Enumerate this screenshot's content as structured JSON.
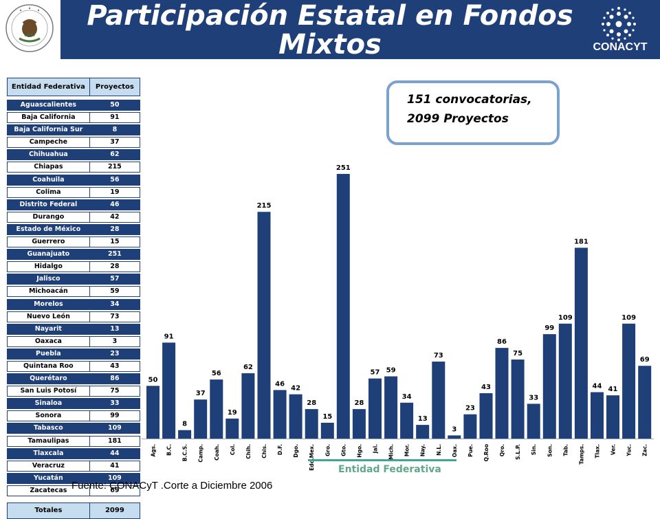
{
  "header": {
    "title_line1": "Participación Estatal en Fondos",
    "title_line2": "Mixtos",
    "logo_text": "CONACYT",
    "seal_text": "ESTADOS UNIDOS MEXICANOS",
    "band_color": "#1e3f77"
  },
  "table": {
    "col1": "Entidad Federativa",
    "col2": "Proyectos",
    "rows": [
      {
        "name": "Aguascalientes",
        "value": "50",
        "style": "dark"
      },
      {
        "name": "Baja California",
        "value": "91",
        "style": "light"
      },
      {
        "name": "Baja California Sur",
        "value": "8",
        "style": "dark"
      },
      {
        "name": "Campeche",
        "value": "37",
        "style": "light"
      },
      {
        "name": "Chihuahua",
        "value": "62",
        "style": "dark"
      },
      {
        "name": "Chiapas",
        "value": "215",
        "style": "light"
      },
      {
        "name": "Coahuila",
        "value": "56",
        "style": "dark"
      },
      {
        "name": "Colima",
        "value": "19",
        "style": "light"
      },
      {
        "name": "Distrito Federal",
        "value": "46",
        "style": "dark"
      },
      {
        "name": "Durango",
        "value": "42",
        "style": "light"
      },
      {
        "name": "Estado de México",
        "value": "28",
        "style": "dark"
      },
      {
        "name": "Guerrero",
        "value": "15",
        "style": "light"
      },
      {
        "name": "Guanajuato",
        "value": "251",
        "style": "dark"
      },
      {
        "name": "Hidalgo",
        "value": "28",
        "style": "light"
      },
      {
        "name": "Jalisco",
        "value": "57",
        "style": "dark"
      },
      {
        "name": "Michoacán",
        "value": "59",
        "style": "light"
      },
      {
        "name": "Morelos",
        "value": "34",
        "style": "dark"
      },
      {
        "name": "Nuevo León",
        "value": "73",
        "style": "light"
      },
      {
        "name": "Nayarit",
        "value": "13",
        "style": "dark"
      },
      {
        "name": "Oaxaca",
        "value": "3",
        "style": "light"
      },
      {
        "name": "Puebla",
        "value": "23",
        "style": "dark"
      },
      {
        "name": "Quintana Roo",
        "value": "43",
        "style": "light"
      },
      {
        "name": "Querétaro",
        "value": "86",
        "style": "dark"
      },
      {
        "name": "San Luis Potosí",
        "value": "75",
        "style": "light"
      },
      {
        "name": "Sinaloa",
        "value": "33",
        "style": "dark"
      },
      {
        "name": "Sonora",
        "value": "99",
        "style": "light"
      },
      {
        "name": "Tabasco",
        "value": "109",
        "style": "dark"
      },
      {
        "name": "Tamaulipas",
        "value": "181",
        "style": "light"
      },
      {
        "name": "Tlaxcala",
        "value": "44",
        "style": "dark"
      },
      {
        "name": "Veracruz",
        "value": "41",
        "style": "light"
      },
      {
        "name": "Yucatán",
        "value": "109",
        "style": "dark"
      },
      {
        "name": "Zacatecas",
        "value": "69",
        "style": "light"
      }
    ],
    "totals_label": "Totales",
    "totals_value": "2099"
  },
  "callout": {
    "line1": "151 convocatorias,",
    "line2": "2099 Proyectos"
  },
  "chart_data": {
    "type": "bar",
    "xlabel": "Entidad Federativa",
    "ylabel": "",
    "ylim": [
      0,
      260
    ],
    "grid": false,
    "legend": "none",
    "bar_color": "#1e3f77",
    "categories": [
      "Ags.",
      "B.C.",
      "B.C.S.",
      "Camp.",
      "Coah.",
      "Col.",
      "Chih.",
      "Chis.",
      "D.F.",
      "Dgo.",
      "Edo.Mex.",
      "Gro.",
      "Gto.",
      "Hgo.",
      "Jal.",
      "Mich.",
      "Mor.",
      "Nay.",
      "N.L.",
      "Oax.",
      "Pue.",
      "Q.Roo",
      "Qro.",
      "S.L.P.",
      "Sin.",
      "Son.",
      "Tab.",
      "Tamps.",
      "Tlax.",
      "Ver.",
      "Yuc.",
      "Zac."
    ],
    "values": [
      50,
      91,
      8,
      37,
      56,
      19,
      62,
      215,
      46,
      42,
      28,
      15,
      251,
      28,
      57,
      59,
      34,
      13,
      73,
      3,
      23,
      43,
      86,
      75,
      33,
      99,
      109,
      181,
      44,
      41,
      109,
      69
    ]
  },
  "footer": {
    "source": "Fuente: CONACyT .Corte a Diciembre 2006"
  }
}
